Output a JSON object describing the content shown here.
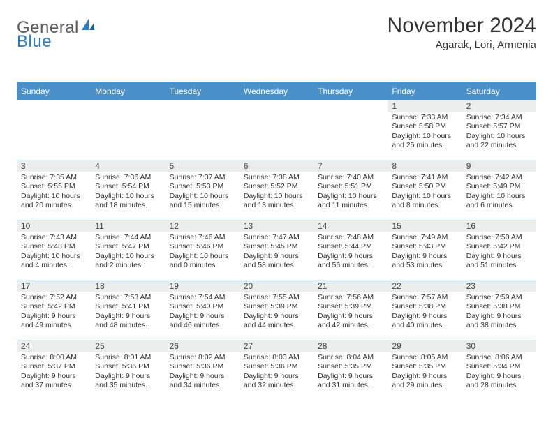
{
  "logo": {
    "text1": "General",
    "text2": "Blue"
  },
  "title": "November 2024",
  "subtitle": "Agarak, Lori, Armenia",
  "colors": {
    "header_blue": "#4a90c9",
    "daynum_bg": "#eceded",
    "text": "#333333",
    "logo_gray": "#5c5c5c",
    "logo_blue": "#2b7cc0",
    "white": "#ffffff"
  },
  "fonts": {
    "title_size": 30,
    "subtitle_size": 15,
    "header_size": 12,
    "daynum_size": 12,
    "body_size": 10.5
  },
  "weekdays": [
    "Sunday",
    "Monday",
    "Tuesday",
    "Wednesday",
    "Thursday",
    "Friday",
    "Saturday"
  ],
  "weeks": [
    [
      {
        "n": "",
        "sr": "",
        "ss": "",
        "dl": ""
      },
      {
        "n": "",
        "sr": "",
        "ss": "",
        "dl": ""
      },
      {
        "n": "",
        "sr": "",
        "ss": "",
        "dl": ""
      },
      {
        "n": "",
        "sr": "",
        "ss": "",
        "dl": ""
      },
      {
        "n": "",
        "sr": "",
        "ss": "",
        "dl": ""
      },
      {
        "n": "1",
        "sr": "Sunrise: 7:33 AM",
        "ss": "Sunset: 5:58 PM",
        "dl": "Daylight: 10 hours and 25 minutes."
      },
      {
        "n": "2",
        "sr": "Sunrise: 7:34 AM",
        "ss": "Sunset: 5:57 PM",
        "dl": "Daylight: 10 hours and 22 minutes."
      }
    ],
    [
      {
        "n": "3",
        "sr": "Sunrise: 7:35 AM",
        "ss": "Sunset: 5:55 PM",
        "dl": "Daylight: 10 hours and 20 minutes."
      },
      {
        "n": "4",
        "sr": "Sunrise: 7:36 AM",
        "ss": "Sunset: 5:54 PM",
        "dl": "Daylight: 10 hours and 18 minutes."
      },
      {
        "n": "5",
        "sr": "Sunrise: 7:37 AM",
        "ss": "Sunset: 5:53 PM",
        "dl": "Daylight: 10 hours and 15 minutes."
      },
      {
        "n": "6",
        "sr": "Sunrise: 7:38 AM",
        "ss": "Sunset: 5:52 PM",
        "dl": "Daylight: 10 hours and 13 minutes."
      },
      {
        "n": "7",
        "sr": "Sunrise: 7:40 AM",
        "ss": "Sunset: 5:51 PM",
        "dl": "Daylight: 10 hours and 11 minutes."
      },
      {
        "n": "8",
        "sr": "Sunrise: 7:41 AM",
        "ss": "Sunset: 5:50 PM",
        "dl": "Daylight: 10 hours and 8 minutes."
      },
      {
        "n": "9",
        "sr": "Sunrise: 7:42 AM",
        "ss": "Sunset: 5:49 PM",
        "dl": "Daylight: 10 hours and 6 minutes."
      }
    ],
    [
      {
        "n": "10",
        "sr": "Sunrise: 7:43 AM",
        "ss": "Sunset: 5:48 PM",
        "dl": "Daylight: 10 hours and 4 minutes."
      },
      {
        "n": "11",
        "sr": "Sunrise: 7:44 AM",
        "ss": "Sunset: 5:47 PM",
        "dl": "Daylight: 10 hours and 2 minutes."
      },
      {
        "n": "12",
        "sr": "Sunrise: 7:46 AM",
        "ss": "Sunset: 5:46 PM",
        "dl": "Daylight: 10 hours and 0 minutes."
      },
      {
        "n": "13",
        "sr": "Sunrise: 7:47 AM",
        "ss": "Sunset: 5:45 PM",
        "dl": "Daylight: 9 hours and 58 minutes."
      },
      {
        "n": "14",
        "sr": "Sunrise: 7:48 AM",
        "ss": "Sunset: 5:44 PM",
        "dl": "Daylight: 9 hours and 56 minutes."
      },
      {
        "n": "15",
        "sr": "Sunrise: 7:49 AM",
        "ss": "Sunset: 5:43 PM",
        "dl": "Daylight: 9 hours and 53 minutes."
      },
      {
        "n": "16",
        "sr": "Sunrise: 7:50 AM",
        "ss": "Sunset: 5:42 PM",
        "dl": "Daylight: 9 hours and 51 minutes."
      }
    ],
    [
      {
        "n": "17",
        "sr": "Sunrise: 7:52 AM",
        "ss": "Sunset: 5:42 PM",
        "dl": "Daylight: 9 hours and 49 minutes."
      },
      {
        "n": "18",
        "sr": "Sunrise: 7:53 AM",
        "ss": "Sunset: 5:41 PM",
        "dl": "Daylight: 9 hours and 48 minutes."
      },
      {
        "n": "19",
        "sr": "Sunrise: 7:54 AM",
        "ss": "Sunset: 5:40 PM",
        "dl": "Daylight: 9 hours and 46 minutes."
      },
      {
        "n": "20",
        "sr": "Sunrise: 7:55 AM",
        "ss": "Sunset: 5:39 PM",
        "dl": "Daylight: 9 hours and 44 minutes."
      },
      {
        "n": "21",
        "sr": "Sunrise: 7:56 AM",
        "ss": "Sunset: 5:39 PM",
        "dl": "Daylight: 9 hours and 42 minutes."
      },
      {
        "n": "22",
        "sr": "Sunrise: 7:57 AM",
        "ss": "Sunset: 5:38 PM",
        "dl": "Daylight: 9 hours and 40 minutes."
      },
      {
        "n": "23",
        "sr": "Sunrise: 7:59 AM",
        "ss": "Sunset: 5:38 PM",
        "dl": "Daylight: 9 hours and 38 minutes."
      }
    ],
    [
      {
        "n": "24",
        "sr": "Sunrise: 8:00 AM",
        "ss": "Sunset: 5:37 PM",
        "dl": "Daylight: 9 hours and 37 minutes."
      },
      {
        "n": "25",
        "sr": "Sunrise: 8:01 AM",
        "ss": "Sunset: 5:36 PM",
        "dl": "Daylight: 9 hours and 35 minutes."
      },
      {
        "n": "26",
        "sr": "Sunrise: 8:02 AM",
        "ss": "Sunset: 5:36 PM",
        "dl": "Daylight: 9 hours and 34 minutes."
      },
      {
        "n": "27",
        "sr": "Sunrise: 8:03 AM",
        "ss": "Sunset: 5:36 PM",
        "dl": "Daylight: 9 hours and 32 minutes."
      },
      {
        "n": "28",
        "sr": "Sunrise: 8:04 AM",
        "ss": "Sunset: 5:35 PM",
        "dl": "Daylight: 9 hours and 31 minutes."
      },
      {
        "n": "29",
        "sr": "Sunrise: 8:05 AM",
        "ss": "Sunset: 5:35 PM",
        "dl": "Daylight: 9 hours and 29 minutes."
      },
      {
        "n": "30",
        "sr": "Sunrise: 8:06 AM",
        "ss": "Sunset: 5:34 PM",
        "dl": "Daylight: 9 hours and 28 minutes."
      }
    ]
  ]
}
